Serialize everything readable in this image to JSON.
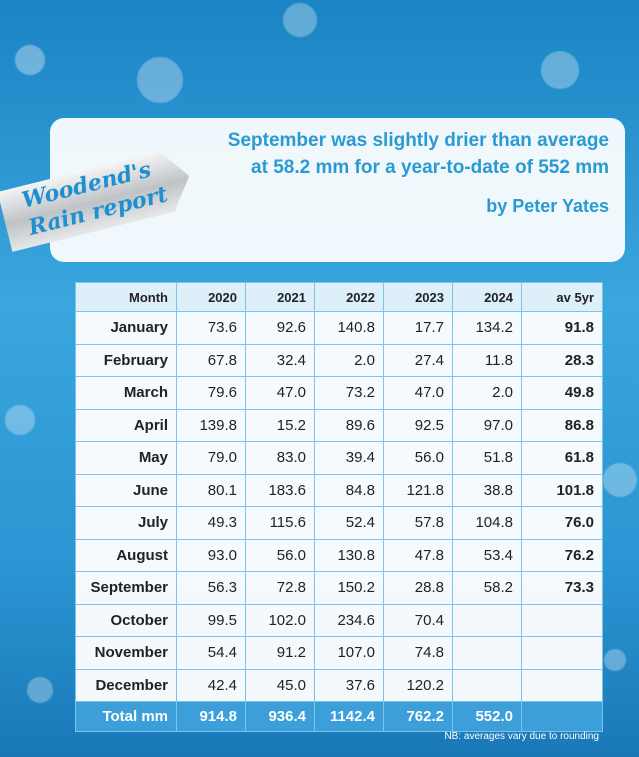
{
  "ribbon": {
    "line1": "Woodend's",
    "line2": "Rain report"
  },
  "headline": {
    "line1": "September was slightly drier than average",
    "line2": "at 58.2 mm for a year-to-date of 552 mm",
    "byline": "by Peter Yates"
  },
  "table": {
    "header": [
      "Month",
      "2020",
      "2021",
      "2022",
      "2023",
      "2024",
      "av 5yr"
    ],
    "rows": [
      [
        "January",
        "73.6",
        "92.6",
        "140.8",
        "17.7",
        "134.2",
        "91.8"
      ],
      [
        "February",
        "67.8",
        "32.4",
        "2.0",
        "27.4",
        "11.8",
        "28.3"
      ],
      [
        "March",
        "79.6",
        "47.0",
        "73.2",
        "47.0",
        "2.0",
        "49.8"
      ],
      [
        "April",
        "139.8",
        "15.2",
        "89.6",
        "92.5",
        "97.0",
        "86.8"
      ],
      [
        "May",
        "79.0",
        "83.0",
        "39.4",
        "56.0",
        "51.8",
        "61.8"
      ],
      [
        "June",
        "80.1",
        "183.6",
        "84.8",
        "121.8",
        "38.8",
        "101.8"
      ],
      [
        "July",
        "49.3",
        "115.6",
        "52.4",
        "57.8",
        "104.8",
        "76.0"
      ],
      [
        "August",
        "93.0",
        "56.0",
        "130.8",
        "47.8",
        "53.4",
        "76.2"
      ],
      [
        "September",
        "56.3",
        "72.8",
        "150.2",
        "28.8",
        "58.2",
        "73.3"
      ],
      [
        "October",
        "99.5",
        "102.0",
        "234.6",
        "70.4",
        null,
        null
      ],
      [
        "November",
        "54.4",
        "91.2",
        "107.0",
        "74.8",
        null,
        null
      ],
      [
        "December",
        "42.4",
        "45.0",
        "37.6",
        "120.2",
        null,
        null
      ]
    ],
    "total": [
      "Total mm",
      "914.8",
      "936.4",
      "1142.4",
      "762.2",
      "552.0",
      null
    ]
  },
  "note": "NB: averages vary due to rounding"
}
